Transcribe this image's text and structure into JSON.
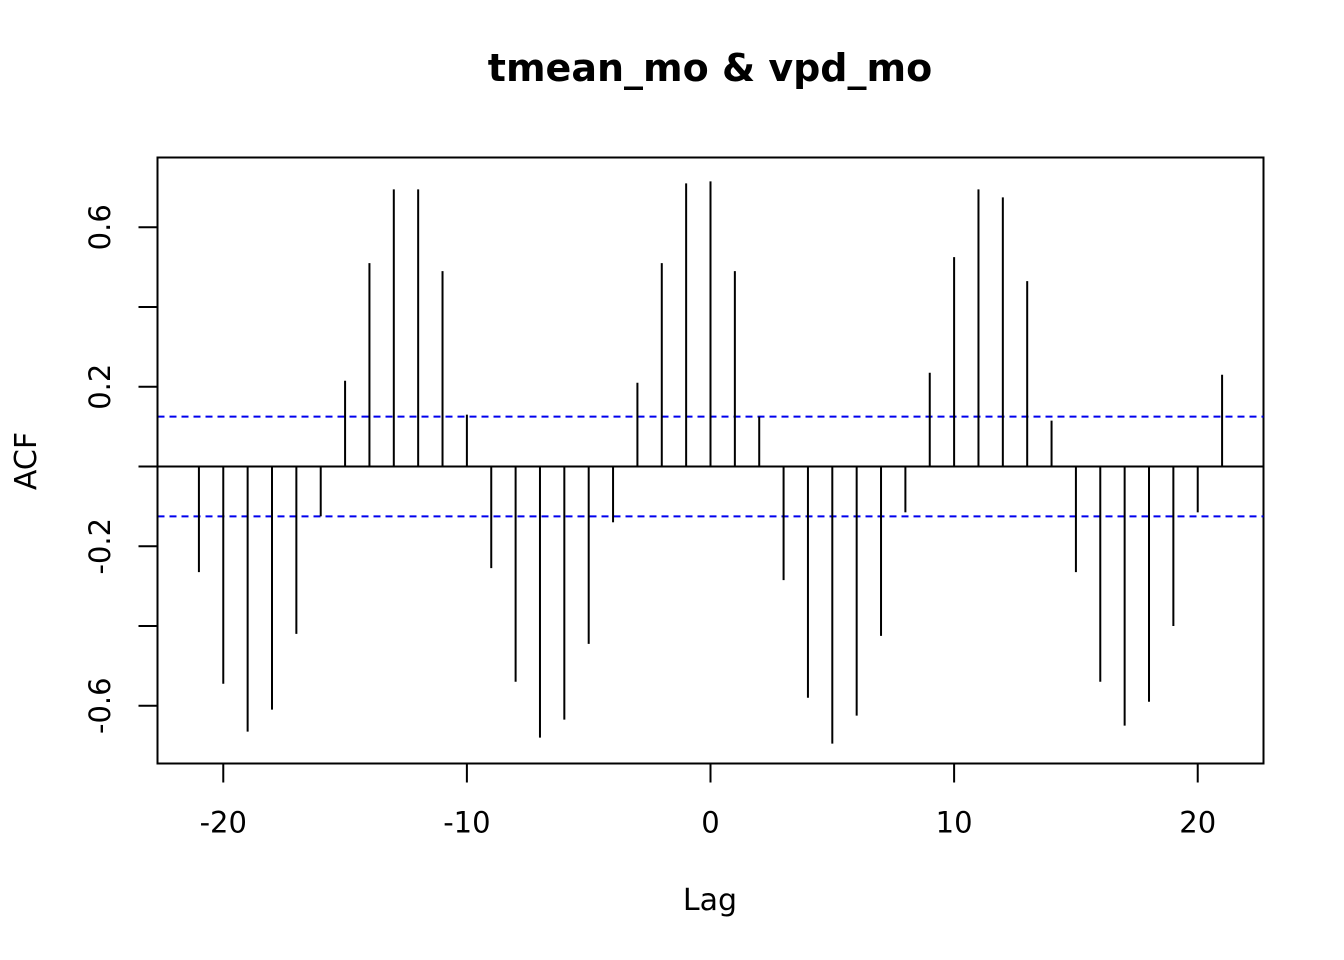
{
  "chart_data": {
    "type": "bar",
    "title": "tmean_mo & vpd_mo",
    "xlabel": "Lag",
    "ylabel": "ACF",
    "xlim": [
      -22.7,
      22.7
    ],
    "ylim": [
      -0.745,
      0.775
    ],
    "x_ticks": [
      -20,
      -10,
      0,
      10,
      20
    ],
    "x_tick_labels": [
      "-20",
      "-10",
      "0",
      "10",
      "20"
    ],
    "y_ticks": [
      -0.6,
      -0.4,
      -0.2,
      0,
      0.2,
      0.4,
      0.6
    ],
    "y_tick_labels": [
      "-0.6",
      "-0.2",
      "0.2",
      "0.6"
    ],
    "y_tick_labeled": [
      -0.6,
      -0.2,
      0.2,
      0.6
    ],
    "confidence_bound": 0.125,
    "confidence_color": "#0000ee",
    "bar_color": "#000000",
    "grid": false,
    "legend": "none",
    "lags": [
      -21,
      -20,
      -19,
      -18,
      -17,
      -16,
      -15,
      -14,
      -13,
      -12,
      -11,
      -10,
      -9,
      -8,
      -7,
      -6,
      -5,
      -4,
      -3,
      -2,
      -1,
      0,
      1,
      2,
      3,
      4,
      5,
      6,
      7,
      8,
      9,
      10,
      11,
      12,
      13,
      14,
      15,
      16,
      17,
      18,
      19,
      20,
      21
    ],
    "values": [
      -0.265,
      -0.545,
      -0.665,
      -0.61,
      -0.42,
      -0.125,
      0.215,
      0.51,
      0.695,
      0.695,
      0.49,
      0.13,
      -0.255,
      -0.54,
      -0.68,
      -0.635,
      -0.445,
      -0.14,
      0.21,
      0.51,
      0.71,
      0.715,
      0.49,
      0.125,
      -0.285,
      -0.58,
      -0.695,
      -0.625,
      -0.425,
      -0.115,
      0.235,
      0.525,
      0.695,
      0.675,
      0.465,
      0.115,
      -0.265,
      -0.54,
      -0.65,
      -0.59,
      -0.4,
      -0.115,
      0.23
    ]
  }
}
